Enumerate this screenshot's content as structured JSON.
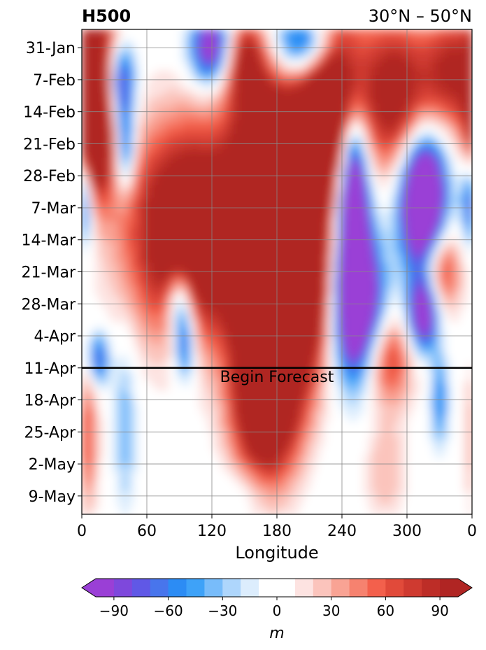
{
  "chart_data": {
    "type": "heatmap",
    "title_left": "H500",
    "title_right": "30°N – 50°N",
    "xlabel": "Longitude",
    "x_ticks": [
      "0",
      "60",
      "120",
      "180",
      "240",
      "300",
      "0"
    ],
    "x_tick_values": [
      0,
      60,
      120,
      180,
      240,
      300,
      360
    ],
    "xlim": [
      0,
      360
    ],
    "y_ticks": [
      "31-Jan",
      "7-Feb",
      "14-Feb",
      "21-Feb",
      "28-Feb",
      "7-Mar",
      "14-Mar",
      "21-Mar",
      "28-Mar",
      "4-Apr",
      "11-Apr",
      "18-Apr",
      "25-Apr",
      "2-May",
      "9-May"
    ],
    "y_tick_days": [
      0,
      7,
      14,
      21,
      28,
      35,
      42,
      49,
      56,
      63,
      70,
      77,
      84,
      91,
      98
    ],
    "ylim_days": [
      -4,
      102
    ],
    "grid": true,
    "forecast_start_day": 70,
    "forecast_label": "Begin Forecast",
    "colorbar": {
      "label": "m",
      "tick_labels": [
        "−90",
        "−60",
        "−30",
        "0",
        "30",
        "60",
        "90"
      ],
      "tick_values": [
        -90,
        -60,
        -30,
        0,
        30,
        60,
        90
      ],
      "levels": [
        -100,
        -90,
        -80,
        -70,
        -60,
        -50,
        -40,
        -30,
        -20,
        -10,
        10,
        20,
        30,
        40,
        50,
        60,
        70,
        80,
        90,
        100
      ],
      "colors": [
        "#9a3fd6",
        "#7e48dc",
        "#6058e6",
        "#4875ec",
        "#2c8cf4",
        "#3ea2f8",
        "#78bcfa",
        "#aed6fc",
        "#dcedfd",
        "#ffffff",
        "#fde3e1",
        "#fbc4bc",
        "#f9a394",
        "#f6826f",
        "#f3604c",
        "#e14a3a",
        "#cf3a30",
        "#bd2d27",
        "#b02523"
      ],
      "under_color": "#9a3fd6",
      "over_color": "#b02523"
    },
    "anomaly_blobs": [
      {
        "lon": 20,
        "day": 3,
        "value": 110,
        "w": 22,
        "h": 20
      },
      {
        "lon": 150,
        "day": 3,
        "value": 100,
        "w": 20,
        "h": 10
      },
      {
        "lon": 210,
        "day": -1,
        "value": -140,
        "w": 30,
        "h": 8
      },
      {
        "lon": 230,
        "day": 10,
        "value": 180,
        "w": 30,
        "h": 22
      },
      {
        "lon": 35,
        "day": 7,
        "value": -140,
        "w": 14,
        "h": 10
      },
      {
        "lon": 120,
        "day": 0,
        "value": -120,
        "w": 20,
        "h": 8
      },
      {
        "lon": 40,
        "day": 22,
        "value": -90,
        "w": 9,
        "h": 9
      },
      {
        "lon": 10,
        "day": 20,
        "value": 130,
        "w": 16,
        "h": 14
      },
      {
        "lon": 180,
        "day": 28,
        "value": 150,
        "w": 35,
        "h": 20
      },
      {
        "lon": 100,
        "day": 40,
        "value": 160,
        "w": 55,
        "h": 22
      },
      {
        "lon": 170,
        "day": 55,
        "value": 200,
        "w": 30,
        "h": 30
      },
      {
        "lon": 205,
        "day": 52,
        "value": 140,
        "w": 25,
        "h": 20
      },
      {
        "lon": 250,
        "day": 32,
        "value": -190,
        "w": 14,
        "h": 20
      },
      {
        "lon": 255,
        "day": 57,
        "value": -170,
        "w": 22,
        "h": 16
      },
      {
        "lon": 315,
        "day": 34,
        "value": -210,
        "w": 20,
        "h": 14
      },
      {
        "lon": 315,
        "day": 58,
        "value": -140,
        "w": 14,
        "h": 8
      },
      {
        "lon": 290,
        "day": 10,
        "value": 110,
        "w": 30,
        "h": 16
      },
      {
        "lon": 340,
        "day": 5,
        "value": 90,
        "w": 25,
        "h": 12
      },
      {
        "lon": 330,
        "day": 48,
        "value": 90,
        "w": 18,
        "h": 10
      },
      {
        "lon": 0,
        "day": 33,
        "value": -110,
        "w": 10,
        "h": 10
      },
      {
        "lon": 90,
        "day": 55,
        "value": -90,
        "w": 12,
        "h": 8
      },
      {
        "lon": 95,
        "day": 65,
        "value": -90,
        "w": 10,
        "h": 8
      },
      {
        "lon": 15,
        "day": 68,
        "value": -80,
        "w": 10,
        "h": 6
      },
      {
        "lon": 280,
        "day": 68,
        "value": 80,
        "w": 25,
        "h": 10
      },
      {
        "lon": 170,
        "day": 80,
        "value": 80,
        "w": 30,
        "h": 14
      },
      {
        "lon": 5,
        "day": 85,
        "value": 60,
        "w": 10,
        "h": 16
      },
      {
        "lon": 40,
        "day": 82,
        "value": -40,
        "w": 10,
        "h": 18
      },
      {
        "lon": 330,
        "day": 77,
        "value": -60,
        "w": 8,
        "h": 10
      },
      {
        "lon": 280,
        "day": 92,
        "value": 30,
        "w": 20,
        "h": 12
      },
      {
        "lon": 150,
        "day": 97,
        "value": -20,
        "w": 25,
        "h": 6
      }
    ]
  }
}
